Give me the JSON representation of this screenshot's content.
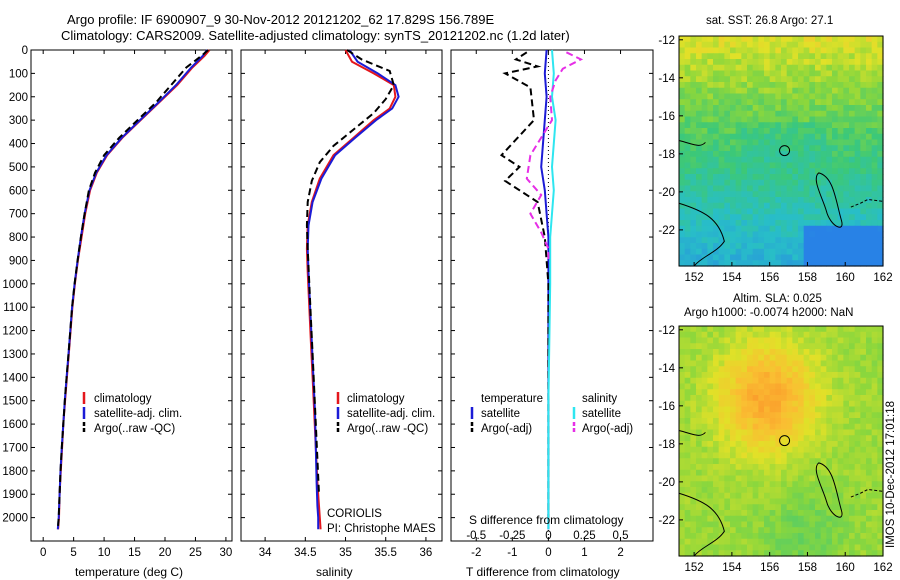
{
  "title_line1": "Argo profile: IF 6900907_9 30-Nov-2012 20121202_62 17.829S 156.789E",
  "title_line2": "Climatology: CARS2009. Satellite-adjusted climatology: synTS_20121202.nc (1.2d later)",
  "side_stamp": "IMOS 10-Dec-2012 17:01:18",
  "colors": {
    "climatology": "#e4161c",
    "satellite_adj": "#1b1bd6",
    "argo": "#000000",
    "salinity_sat": "#2ee6f0",
    "salinity_argo": "#e62ee6"
  },
  "panels": {
    "temperature": {
      "xlabel": "temperature (deg C)",
      "legend": [
        "climatology",
        "satellite-adj. clim.",
        "Argo(..raw -QC)"
      ]
    },
    "salinity": {
      "xlabel": "salinity",
      "legend": [
        "climatology",
        "satellite-adj. clim.",
        "Argo(..raw -QC)"
      ],
      "annotation1": "CORIOLIS",
      "annotation2": "PI: Christophe MAES"
    },
    "difference": {
      "xlabel_bottom": "T difference from climatology",
      "xlabel_top": "S difference from climatology",
      "legend_temp_title": "temperature",
      "legend_sal_title": "salinity",
      "legend_items": [
        "satellite",
        "Argo(-adj)",
        "satellite",
        "Argo(-adj)"
      ]
    },
    "sst_map": {
      "title": "sat. SST: 26.8 Argo: 27.1",
      "icon": "sst-map-image"
    },
    "sla_map": {
      "title1": "Altim. SLA: 0.025",
      "title2": "Argo h1000: -0.0074 h2000: NaN",
      "icon": "sla-map-image"
    }
  },
  "chart_data": [
    {
      "type": "line",
      "name": "temperature-profile",
      "xlabel": "temperature (deg C)",
      "ylabel": "",
      "xlim": [
        -2,
        31
      ],
      "ylim": [
        2100,
        0
      ],
      "xticks": [
        0,
        5,
        10,
        15,
        20,
        25,
        30
      ],
      "yticks": [
        0,
        100,
        200,
        300,
        400,
        500,
        600,
        700,
        800,
        900,
        1000,
        1100,
        1200,
        1300,
        1400,
        1500,
        1600,
        1700,
        1800,
        1900,
        2000
      ],
      "series": [
        {
          "name": "climatology",
          "color": "#e4161c",
          "dash": "none",
          "x": [
            27.3,
            26.5,
            24.5,
            22.0,
            19.0,
            16.0,
            13.0,
            10.5,
            8.8,
            7.7,
            6.9,
            6.3,
            5.7,
            5.2,
            4.8,
            4.5,
            4.2,
            3.9,
            3.6,
            3.3,
            3.1,
            2.9,
            2.7,
            2.6,
            2.45
          ],
          "y": [
            0,
            25,
            75,
            150,
            225,
            300,
            375,
            450,
            525,
            600,
            700,
            800,
            900,
            1000,
            1100,
            1200,
            1300,
            1400,
            1500,
            1600,
            1700,
            1800,
            1900,
            2000,
            2050
          ]
        },
        {
          "name": "satellite-adj. clim.",
          "color": "#1b1bd6",
          "dash": "none",
          "x": [
            26.9,
            26.2,
            24.3,
            21.8,
            18.9,
            15.9,
            12.9,
            10.4,
            8.7,
            7.6,
            6.8,
            6.2,
            5.65,
            5.15,
            4.75,
            4.45,
            4.15,
            3.85,
            3.55,
            3.3,
            3.05,
            2.85,
            2.7,
            2.55,
            2.4
          ],
          "y": [
            0,
            25,
            75,
            150,
            225,
            300,
            375,
            450,
            525,
            600,
            700,
            800,
            900,
            1000,
            1100,
            1200,
            1300,
            1400,
            1500,
            1600,
            1700,
            1800,
            1900,
            2000,
            2050
          ]
        },
        {
          "name": "Argo(..raw -QC)",
          "color": "#000000",
          "dash": "7,4",
          "x": [
            27.1,
            26.0,
            23.5,
            21.0,
            18.5,
            15.5,
            12.5,
            10.0,
            8.5,
            7.5,
            6.8,
            6.2,
            5.65,
            5.15,
            4.75,
            4.45,
            4.15,
            3.85,
            3.55,
            3.3,
            3.05,
            2.85,
            2.7,
            2.55,
            2.4
          ],
          "y": [
            0,
            25,
            75,
            150,
            225,
            300,
            375,
            450,
            525,
            600,
            700,
            800,
            900,
            1000,
            1100,
            1200,
            1300,
            1400,
            1500,
            1600,
            1700,
            1800,
            1900,
            2000,
            2050
          ]
        }
      ]
    },
    {
      "type": "line",
      "name": "salinity-profile",
      "xlabel": "salinity",
      "xlim": [
        33.7,
        36.2
      ],
      "ylim": [
        2100,
        0
      ],
      "xticks": [
        34,
        34.5,
        35,
        35.5,
        36
      ],
      "series": [
        {
          "name": "climatology",
          "color": "#e4161c",
          "dash": "none",
          "x": [
            35.0,
            35.08,
            35.35,
            35.6,
            35.62,
            35.55,
            35.35,
            35.1,
            34.85,
            34.68,
            34.58,
            34.53,
            34.52,
            34.53,
            34.55,
            34.57,
            34.59,
            34.61,
            34.63,
            34.65,
            34.67,
            34.68,
            34.69
          ],
          "y": [
            0,
            50,
            100,
            150,
            200,
            250,
            300,
            375,
            450,
            550,
            650,
            750,
            850,
            950,
            1100,
            1250,
            1400,
            1550,
            1700,
            1850,
            1950,
            2000,
            2050
          ]
        },
        {
          "name": "satellite-adj. clim.",
          "color": "#1b1bd6",
          "dash": "none",
          "x": [
            35.05,
            35.15,
            35.4,
            35.62,
            35.66,
            35.58,
            35.38,
            35.12,
            34.87,
            34.7,
            34.59,
            34.54,
            34.53,
            34.54,
            34.56,
            34.58,
            34.6,
            34.62,
            34.63,
            34.64,
            34.65,
            34.66,
            34.66
          ],
          "y": [
            0,
            50,
            100,
            150,
            200,
            250,
            300,
            375,
            450,
            550,
            650,
            750,
            850,
            950,
            1100,
            1250,
            1400,
            1550,
            1700,
            1850,
            1950,
            2000,
            2050
          ]
        },
        {
          "name": "Argo(..raw -QC)",
          "color": "#000000",
          "dash": "7,4",
          "x": [
            35.02,
            35.2,
            35.55,
            35.6,
            35.5,
            35.35,
            35.1,
            34.85,
            34.68,
            34.58,
            34.53,
            34.52,
            34.53,
            34.55,
            34.57,
            34.59,
            34.61,
            34.63,
            34.65,
            34.67
          ],
          "y": [
            0,
            40,
            90,
            150,
            210,
            270,
            340,
            410,
            480,
            560,
            650,
            750,
            850,
            1000,
            1150,
            1300,
            1450,
            1600,
            1750,
            1900
          ]
        }
      ]
    },
    {
      "type": "line",
      "name": "difference-profile",
      "xlabel": "T difference from climatology",
      "xlabel_top": "S difference from climatology",
      "xlim": [
        -2.7,
        2.9
      ],
      "ylim": [
        2100,
        0
      ],
      "xticks_bottom": [
        -2,
        -1,
        0,
        1,
        2
      ],
      "xticks_top_labels": [
        "-0.5",
        "-0.25",
        "0",
        "0.25",
        "0.5"
      ],
      "series": [
        {
          "name": "satellite",
          "group": "temperature",
          "color": "#1b1bd6",
          "dash": "none",
          "x": [
            -0.05,
            -0.1,
            -0.05,
            -0.1,
            -0.15,
            -0.2,
            -0.1,
            -0.05,
            0.0,
            0.0,
            0.0,
            0.0,
            0.0,
            0.0
          ],
          "y": [
            0,
            100,
            200,
            300,
            400,
            500,
            600,
            700,
            800,
            1000,
            1300,
            1600,
            1900,
            2050
          ]
        },
        {
          "name": "Argo(-adj)",
          "group": "temperature",
          "color": "#000000",
          "dash": "7,4",
          "x": [
            -0.6,
            -0.9,
            -0.3,
            -1.2,
            -0.5,
            -0.4,
            -1.3,
            -0.8,
            -1.2,
            -0.3,
            -0.1,
            0.0,
            0.0,
            0.0,
            0.0
          ],
          "y": [
            10,
            40,
            70,
            100,
            160,
            300,
            450,
            500,
            560,
            650,
            800,
            1000,
            1400,
            1800,
            2000
          ]
        },
        {
          "name": "satellite",
          "group": "salinity",
          "color": "#2ee6f0",
          "dash": "none",
          "x": [
            0.1,
            0.15,
            0.1,
            0.2,
            0.15,
            0.1,
            0.15,
            0.1,
            0.05,
            0.05,
            0.0,
            0.0
          ],
          "y": [
            0,
            100,
            200,
            300,
            400,
            500,
            600,
            700,
            800,
            1000,
            1500,
            2050
          ]
        },
        {
          "name": "Argo(-adj)",
          "group": "salinity",
          "color": "#e62ee6",
          "dash": "7,4",
          "x": [
            0.5,
            0.9,
            0.4,
            0.2,
            0.05,
            0.1,
            -0.5,
            -0.6,
            -0.2,
            -0.5,
            -0.2,
            0.0,
            0.0
          ],
          "y": [
            10,
            40,
            80,
            130,
            200,
            300,
            450,
            550,
            620,
            700,
            780,
            850,
            900
          ]
        }
      ]
    },
    {
      "type": "heatmap",
      "name": "sst-map",
      "title": "sat. SST: 26.8 Argo: 27.1",
      "xlim": [
        151.2,
        162.0
      ],
      "ylim": [
        -23.9,
        -11.8
      ],
      "xticks": [
        152,
        154,
        156,
        158,
        160,
        162
      ],
      "yticks": [
        -12,
        -14,
        -16,
        -18,
        -20,
        -22
      ],
      "marker": {
        "lon": 156.789,
        "lat": -17.829
      }
    },
    {
      "type": "heatmap",
      "name": "sla-map",
      "title": "Altim. SLA: 0.025",
      "subtitle": "Argo h1000: -0.0074 h2000: NaN",
      "xlim": [
        151.2,
        162.0
      ],
      "ylim": [
        -23.9,
        -11.8
      ],
      "xticks": [
        152,
        154,
        156,
        158,
        160,
        162
      ],
      "yticks": [
        -12,
        -14,
        -16,
        -18,
        -20,
        -22
      ],
      "marker": {
        "lon": 156.789,
        "lat": -17.829
      }
    }
  ]
}
